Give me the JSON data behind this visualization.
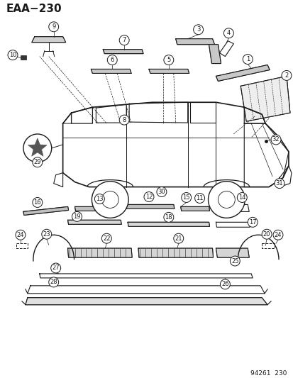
{
  "title": "EAA−230",
  "footer": "94261  230",
  "bg_color": "#ffffff",
  "line_color": "#1a1a1a",
  "title_fontsize": 11,
  "footer_fontsize": 6.5,
  "figsize": [
    4.14,
    5.33
  ],
  "dpi": 100
}
